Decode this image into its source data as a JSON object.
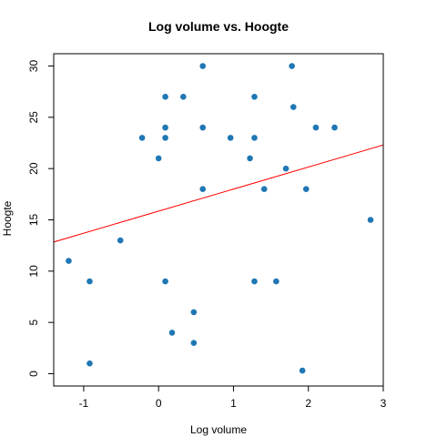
{
  "chart_data": {
    "type": "scatter",
    "title": "Log volume vs. Hoogte",
    "xlabel": "Log volume",
    "ylabel": "Hoogte",
    "xlim": [
      -1.4,
      3.0
    ],
    "ylim": [
      -1.2,
      31.2
    ],
    "x_ticks": [
      -1,
      0,
      1,
      2,
      3
    ],
    "y_ticks": [
      0,
      5,
      10,
      15,
      20,
      25,
      30
    ],
    "grid": false,
    "point_color": "#1f77b4",
    "line_color": "#ff0000",
    "points": [
      {
        "x": 0.59,
        "y": 30
      },
      {
        "x": 1.78,
        "y": 30
      },
      {
        "x": 0.09,
        "y": 27
      },
      {
        "x": 0.33,
        "y": 27
      },
      {
        "x": 1.28,
        "y": 27
      },
      {
        "x": 1.8,
        "y": 26
      },
      {
        "x": 0.09,
        "y": 24
      },
      {
        "x": 0.59,
        "y": 24
      },
      {
        "x": 2.1,
        "y": 24
      },
      {
        "x": 2.35,
        "y": 24
      },
      {
        "x": -0.22,
        "y": 23
      },
      {
        "x": 0.09,
        "y": 23
      },
      {
        "x": 0.96,
        "y": 23
      },
      {
        "x": 1.28,
        "y": 23
      },
      {
        "x": 0.0,
        "y": 21
      },
      {
        "x": 1.22,
        "y": 21
      },
      {
        "x": 1.7,
        "y": 20
      },
      {
        "x": 0.59,
        "y": 18
      },
      {
        "x": 1.41,
        "y": 18
      },
      {
        "x": 1.97,
        "y": 18
      },
      {
        "x": 2.83,
        "y": 15
      },
      {
        "x": -0.51,
        "y": 13
      },
      {
        "x": -1.2,
        "y": 11
      },
      {
        "x": -0.92,
        "y": 9
      },
      {
        "x": 0.09,
        "y": 9
      },
      {
        "x": 1.28,
        "y": 9
      },
      {
        "x": 1.57,
        "y": 9
      },
      {
        "x": 0.47,
        "y": 6
      },
      {
        "x": 0.18,
        "y": 4
      },
      {
        "x": 0.47,
        "y": 3
      },
      {
        "x": -0.92,
        "y": 1
      },
      {
        "x": 1.92,
        "y": 0.3
      }
    ],
    "regression_line": {
      "intercept": 15.85,
      "slope": 2.15
    }
  }
}
